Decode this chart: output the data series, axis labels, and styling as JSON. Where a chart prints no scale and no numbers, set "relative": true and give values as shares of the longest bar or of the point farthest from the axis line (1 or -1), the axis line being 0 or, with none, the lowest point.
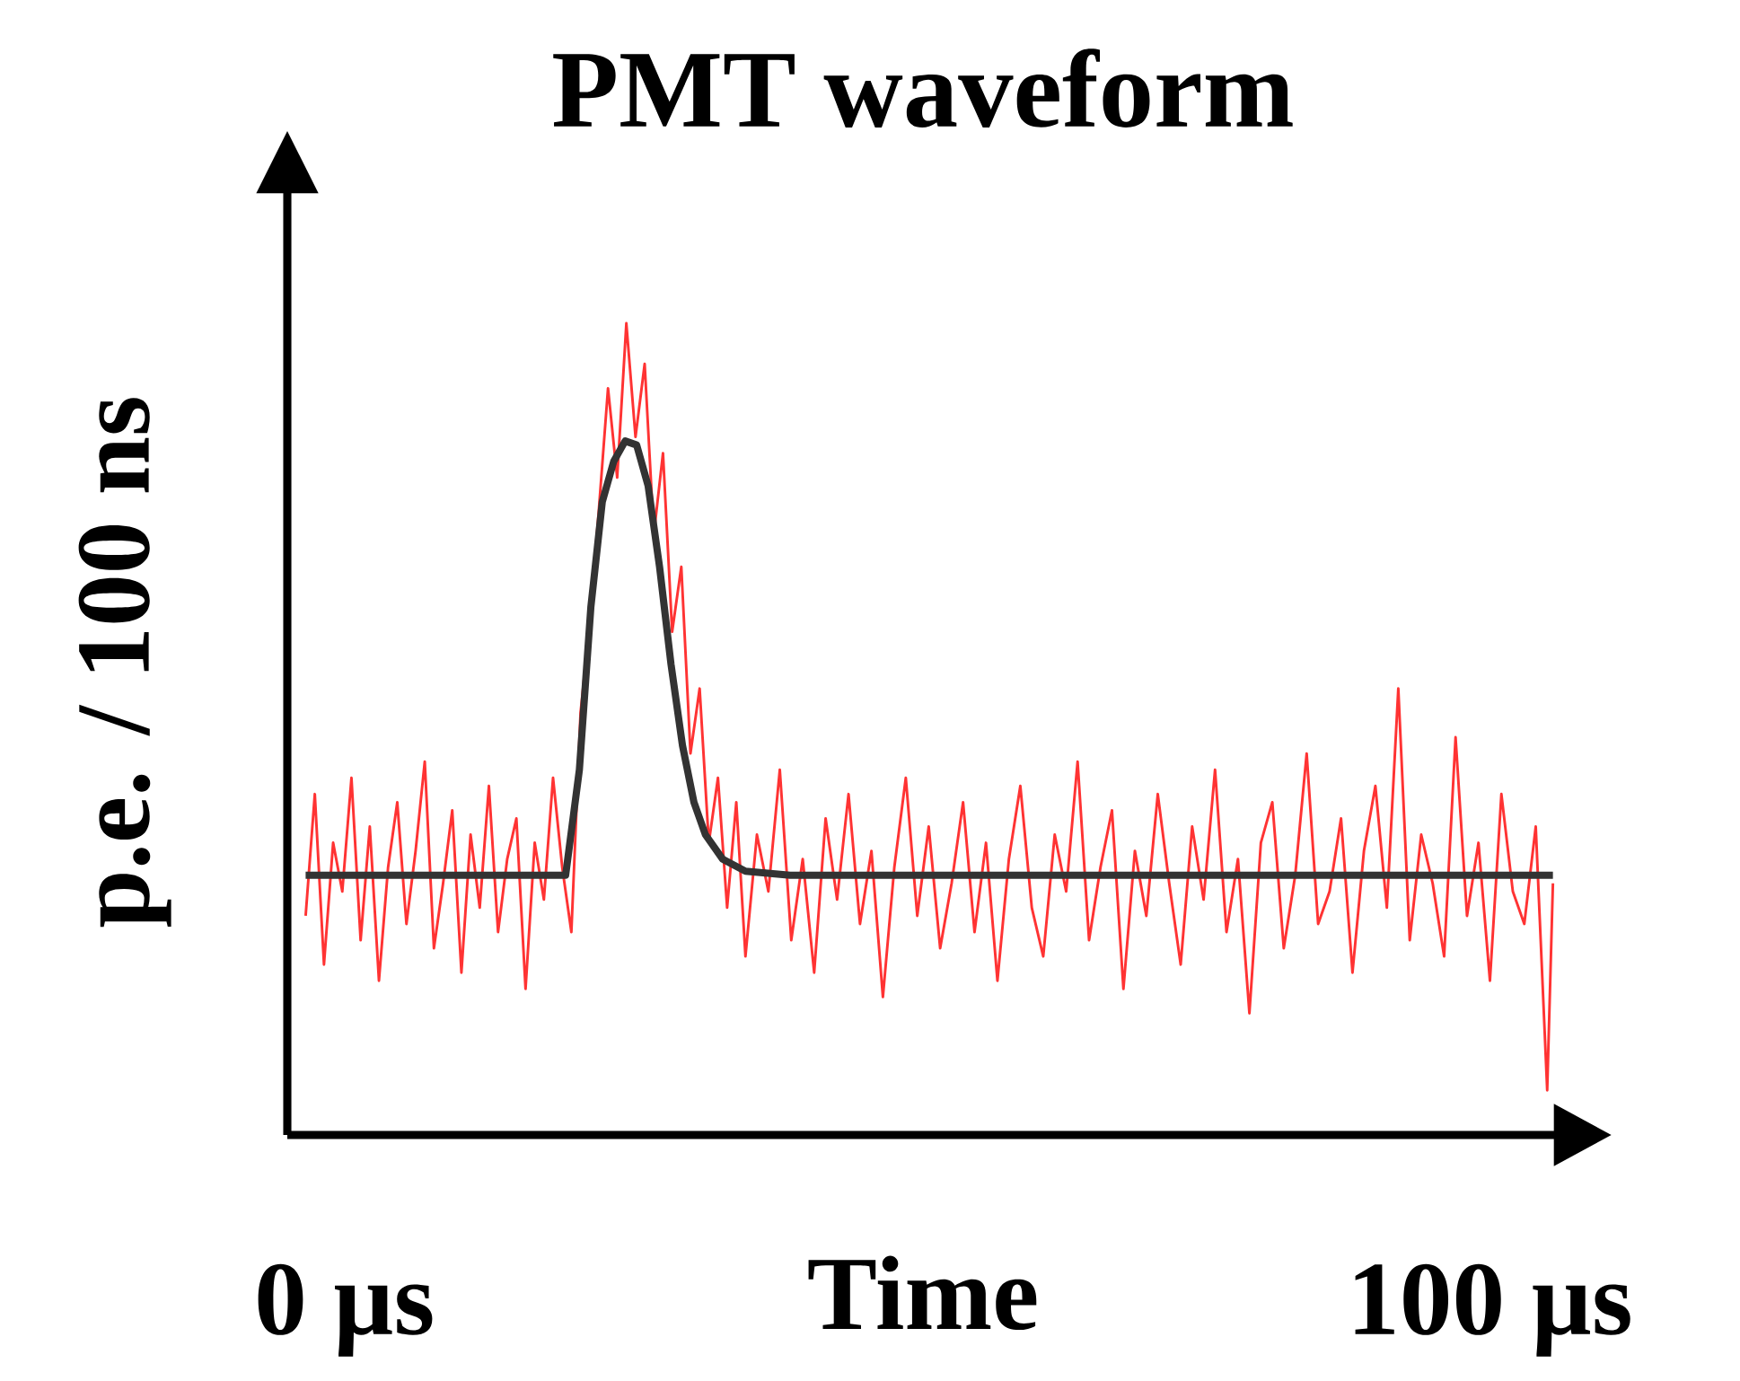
{
  "chart_data": {
    "type": "line",
    "title": "PMT waveform",
    "xlabel": "Time",
    "ylabel": "p.e. / 100 ns",
    "relative": true,
    "grid": false,
    "marker": "none",
    "line_style": "solid",
    "xlim": [
      -5,
      106
    ],
    "xticks": [
      {
        "value": 0,
        "label": "0 µs"
      },
      {
        "value": 100,
        "label": "100 µs"
      }
    ],
    "series": [
      {
        "color": "#ff3333",
        "x": [
          -3.4,
          -2.6,
          -1.8,
          -1.0,
          -0.2,
          0.6,
          1.4,
          2.2,
          3.0,
          3.8,
          4.6,
          5.4,
          6.2,
          7.0,
          7.8,
          8.6,
          9.4,
          10.2,
          11.0,
          11.8,
          12.6,
          13.4,
          14.2,
          15.0,
          15.8,
          16.6,
          17.4,
          18.2,
          19.0,
          19.8,
          20.6,
          21.4,
          22.2,
          23.0,
          23.8,
          24.6,
          25.4,
          26.2,
          27.0,
          27.8,
          28.6,
          29.4,
          30.2,
          31.0,
          31.8,
          32.6,
          33.4,
          34.2,
          35.0,
          36,
          37,
          38,
          39,
          40,
          41,
          42,
          43,
          44,
          45,
          46,
          47,
          48,
          49,
          50,
          51,
          52,
          53,
          54,
          55,
          56,
          57,
          58,
          59,
          60,
          61,
          62,
          63,
          64,
          65,
          66,
          67,
          68,
          69,
          70,
          71,
          72,
          73,
          74,
          75,
          76,
          77,
          78,
          79,
          80,
          81,
          82,
          83,
          84,
          85,
          86,
          87,
          88,
          89,
          90,
          91,
          92,
          93,
          94,
          95,
          96,
          97,
          98,
          99,
          100,
          101,
          102,
          103,
          104,
          105,
          105.5
        ],
        "values": [
          0.27,
          0.42,
          0.21,
          0.36,
          0.3,
          0.44,
          0.24,
          0.38,
          0.19,
          0.33,
          0.41,
          0.26,
          0.35,
          0.46,
          0.23,
          0.31,
          0.4,
          0.2,
          0.37,
          0.28,
          0.43,
          0.25,
          0.34,
          0.39,
          0.18,
          0.36,
          0.29,
          0.44,
          0.33,
          0.25,
          0.52,
          0.63,
          0.77,
          0.92,
          0.81,
          1.0,
          0.86,
          0.95,
          0.74,
          0.84,
          0.62,
          0.7,
          0.47,
          0.55,
          0.36,
          0.44,
          0.28,
          0.41,
          0.22,
          0.37,
          0.3,
          0.45,
          0.24,
          0.34,
          0.2,
          0.39,
          0.29,
          0.42,
          0.26,
          0.35,
          0.17,
          0.33,
          0.44,
          0.27,
          0.38,
          0.23,
          0.31,
          0.41,
          0.25,
          0.36,
          0.19,
          0.34,
          0.43,
          0.28,
          0.22,
          0.37,
          0.3,
          0.46,
          0.24,
          0.33,
          0.4,
          0.18,
          0.35,
          0.27,
          0.42,
          0.31,
          0.21,
          0.38,
          0.29,
          0.45,
          0.25,
          0.34,
          0.15,
          0.36,
          0.41,
          0.23,
          0.32,
          0.47,
          0.26,
          0.3,
          0.39,
          0.2,
          0.35,
          0.43,
          0.28,
          0.55,
          0.24,
          0.37,
          0.31,
          0.22,
          0.49,
          0.27,
          0.36,
          0.19,
          0.42,
          0.3,
          0.26,
          0.38,
          0.055,
          0.31
        ]
      },
      {
        "color": "#333333",
        "x": [
          -3.4,
          19.3,
          20.5,
          21.5,
          22.5,
          23.5,
          24.5,
          25.5,
          26.5,
          27.5,
          28.5,
          29.5,
          30.5,
          31.5,
          33,
          35,
          38.9,
          105.5
        ],
        "values": [
          0.32,
          0.32,
          0.45,
          0.65,
          0.78,
          0.83,
          0.855,
          0.85,
          0.8,
          0.7,
          0.58,
          0.48,
          0.41,
          0.37,
          0.34,
          0.325,
          0.32,
          0.32
        ]
      }
    ]
  }
}
